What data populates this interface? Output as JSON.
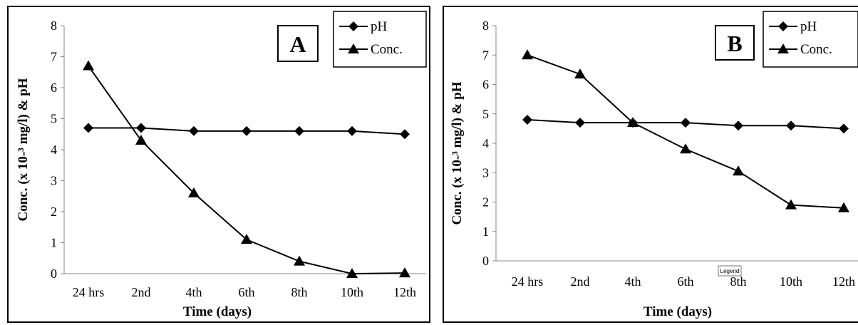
{
  "chart_data": [
    {
      "type": "line",
      "panel_label": "A",
      "categories": [
        "24 hrs",
        "2nd",
        "4th",
        "6th",
        "8th",
        "10th",
        "12th"
      ],
      "series": [
        {
          "name": "pH",
          "marker": "diamond",
          "values": [
            4.7,
            4.7,
            4.6,
            4.6,
            4.6,
            4.6,
            4.5
          ]
        },
        {
          "name": "Conc.",
          "marker": "triangle",
          "values": [
            6.7,
            4.3,
            2.6,
            1.1,
            0.4,
            0.0,
            0.02
          ]
        }
      ],
      "xlabel": "Time (days)",
      "ylabel": "Conc. (x 10-³ mg/l) & pH",
      "yticks": [
        "0",
        "1",
        "2",
        "3",
        "4",
        "5",
        "6",
        "7",
        "8"
      ],
      "ylim": [
        0,
        8
      ],
      "grid": false,
      "legend_position": "top-right"
    },
    {
      "type": "line",
      "panel_label": "B",
      "categories": [
        "24 hrs",
        "2nd",
        "4th",
        "6th",
        "8th",
        "10th",
        "12th"
      ],
      "series": [
        {
          "name": "pH",
          "marker": "diamond",
          "values": [
            4.8,
            4.7,
            4.7,
            4.7,
            4.6,
            4.6,
            4.5
          ]
        },
        {
          "name": "Conc.",
          "marker": "triangle",
          "values": [
            7.0,
            6.35,
            4.7,
            3.8,
            3.05,
            1.9,
            1.8
          ]
        }
      ],
      "xlabel": "Time (days)",
      "ylabel": "Conc. (x 10-³ mg/l) & pH",
      "yticks": [
        "0",
        "1",
        "2",
        "3",
        "4",
        "5",
        "6",
        "7",
        "8"
      ],
      "ylim": [
        0,
        8
      ],
      "grid": false,
      "legend_position": "top-right",
      "tooltip": "Legend"
    }
  ],
  "colors": {
    "line": "#000000",
    "background": "#ffffff"
  }
}
